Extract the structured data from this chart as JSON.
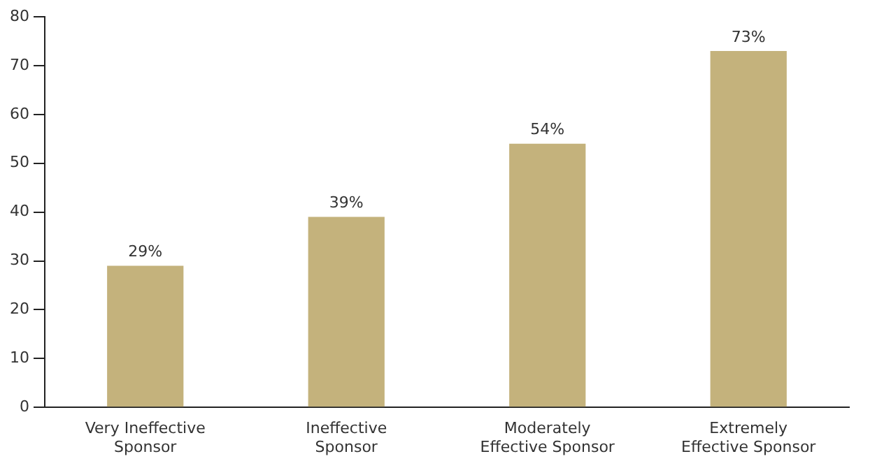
{
  "chart_data": {
    "type": "bar",
    "categories": [
      [
        "Very Ineffective",
        "Sponsor"
      ],
      [
        "Ineffective",
        "Sponsor"
      ],
      [
        "Moderately",
        "Effective Sponsor"
      ],
      [
        "Extremely",
        "Effective Sponsor"
      ]
    ],
    "values": [
      29,
      39,
      54,
      73
    ],
    "value_labels": [
      "29%",
      "39%",
      "54%",
      "73%"
    ],
    "color": "#c4b27c",
    "ylim": [
      0,
      80
    ],
    "yticks": [
      0,
      10,
      20,
      30,
      40,
      50,
      60,
      70,
      80
    ],
    "grid": false,
    "legend": false
  }
}
